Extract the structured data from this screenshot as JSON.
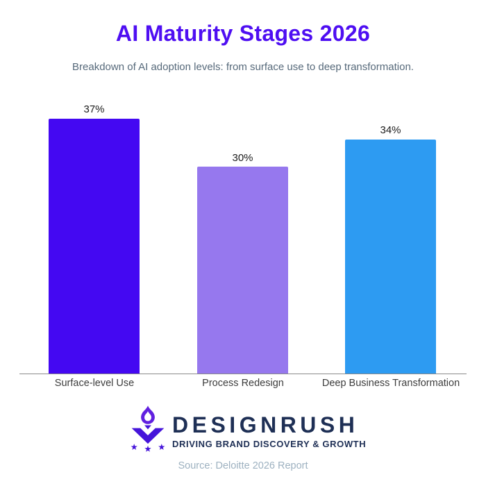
{
  "header": {
    "title": "AI Maturity Stages 2026",
    "subtitle": "Breakdown of AI adoption levels: from surface use to deep transformation."
  },
  "chart_data": {
    "type": "bar",
    "title": "AI Maturity Stages 2026",
    "subtitle": "Breakdown of AI adoption levels: from surface use to deep transformation.",
    "categories": [
      "Surface-level Use",
      "Process Redesign",
      "Deep Business Transformation"
    ],
    "values": [
      37,
      30,
      34
    ],
    "value_labels": [
      "37%",
      "30%",
      "34%"
    ],
    "unit": "percent",
    "ylim": [
      0,
      40
    ],
    "grid": false,
    "legend": false,
    "y_axis_visible": false,
    "x_baseline_visible": true,
    "bar_colors": [
      "#4408f2",
      "#9678ee",
      "#2d9bf2"
    ]
  },
  "footer": {
    "logo": {
      "text": "DESIGNRUSH",
      "tagline": "DRIVING BRAND DISCOVERY & GROWTH",
      "icon": "designrush-torch-icon"
    },
    "source": "Source: Deloitte 2026 Report"
  },
  "colors": {
    "background": "#ffffff",
    "title_color": "#4e0ef2",
    "subtitle_color": "#56697a",
    "value_label_color": "#1b1b1b",
    "category_label_color": "#3c3c3c",
    "axis_line_color": "#8a8a8a",
    "logo_navy": "#1e2f55",
    "logo_flame": "#6120e0",
    "logo_violet": "#4514da",
    "source_color": "#9db1c0"
  }
}
